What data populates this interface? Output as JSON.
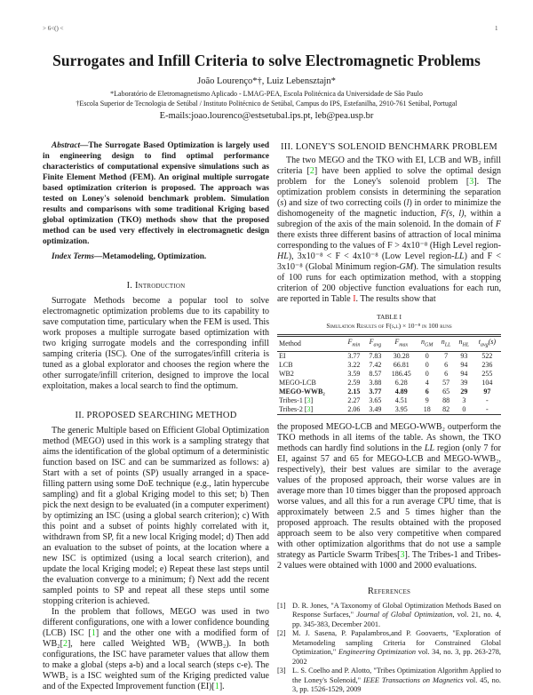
{
  "header": {
    "left": "> 6<() <",
    "page_number": "1"
  },
  "title": "Surrogates and Infill Criteria to solve Electromagnetic Problems",
  "authors": "João Lourenço*†, Luiz Lebensztajn*",
  "affiliations": [
    "*Laboratório de Eletromagnetismo Aplicado - LMAG-PEA, Escola Politécnica da Universidade de São Paulo",
    "†Escola Superior de Tecnologia de Setúbal / Instituto Politécnico de Setúbal, Campus do IPS, Estefanilha, 2910-761 Setúbal, Portugal"
  ],
  "emails": "E-mails:joao.lourenco@estsetubal.ips.pt, leb@pea.usp.br",
  "abstract": {
    "label": "Abstract",
    "text": "—The Surrogate Based Optimization is largely used in engineering design to find optimal performance characteristics of computational expensive simulations such as Finite Element Method (FEM). An original multiple surrogate based optimization criterion is proposed. The approach was tested on Loney's solenoid benchmark problem. Simulation results and comparisons with some traditional Kriging based global optimization (TKO) methods show that the proposed method can be used very effectively in electromagnetic design optimization.",
    "index_label": "Index Terms",
    "index_text": "—Metamodeling, Optimization."
  },
  "sections": {
    "intro": {
      "title": "I. Introduction",
      "paragraphs": [
        [
          {
            "t": "Surrogate Methods become a popular tool to solve electromagnetic optimization problems due to its capability to save computation time, particulary when the FEM is used. This work proposes a multiple surrogate based optimization with two kriging surrogate models and the corresponding infill samping criteria (ISC). One of the surrogates/infill criteria is tuned as a global explorator and chooses the region where the other surrogate/infill criterion, designed to improve the local exploitation, makes a local search to find the optimum."
          }
        ]
      ]
    },
    "method": {
      "title": "II. PROPOSED SEARCHING METHOD",
      "paragraphs": [
        [
          {
            "t": "The generic Multiple based on Efficient Global Optimization method (MEGO) used in this work is a sampling strategy that aims the identification of the global optimum of a deterministic function based on ISC and can be summarized as follows: a) Start with a set of points (SP) usually arranged in a space-filling pattern using some DoE technique (e.g., latin hypercube sampling) and fit a global Kriging model to this set; b) Then pick the next design to be evaluated (in a computer experiment) by optimizing an ISC (using a global search criterion); c) With this point and a subset of points highly correlated with it, withdrawn from SP, fit a new local Kriging model; d) Then add an evaluation to the subset of points, at the location where a new ISC is optimized (using a local search criterion), and update the local Kriging model; e) Repeat these last steps until the evaluation converge to a minimum; f) Next add the recent sampled points to SP and repeat all these steps until some stopping criterion is achieved."
          }
        ],
        [
          {
            "t": "In the problem that follows, MEGO was used in two different configurations, one with a lower confidence bounding (LCB) ISC ["
          },
          {
            "t": "1",
            "k": "cite"
          },
          {
            "t": "] and the other one with a modified form of WB₂["
          },
          {
            "t": "2",
            "k": "cite"
          },
          {
            "t": "], here called Weighted WB₂ (WWB₂). In both configurations, the ISC have parameter values that allow them to make a global (steps a-b) and a local search (steps c-e). The WWB₂ is a ISC weighted sum of the Kriging predicted value and of the Expected Improvement function (EI)["
          },
          {
            "t": "1",
            "k": "cite"
          },
          {
            "t": "]."
          }
        ]
      ]
    },
    "loney": {
      "title": "III. LONEY'S SOLENOID BENCHMARK PROBLEM",
      "paragraphs": [
        [
          {
            "t": "The two MEGO and the TKO with EI, LCB and WB₂ infill criteria ["
          },
          {
            "t": "2",
            "k": "cite"
          },
          {
            "t": "] have been applied to solve the optimal design problem for the Loney's solenoid problem ["
          },
          {
            "t": "3",
            "k": "cite"
          },
          {
            "t": "]. The optimization problem consists in determining the separation ("
          },
          {
            "t": "s",
            "k": "it"
          },
          {
            "t": ") and size of two correcting coils ("
          },
          {
            "t": "l",
            "k": "it"
          },
          {
            "t": ") in order to minimize the dishomogeneity of the magnetic induction, "
          },
          {
            "t": "F(s, l)",
            "k": "it"
          },
          {
            "t": ", within a subregion of the axis of the main solenoid. In the domain of "
          },
          {
            "t": "F",
            "k": "it"
          },
          {
            "t": " there exists three different basins of attraction of local minima corresponding to the values of F > 4x10⁻⁸ (High Level region-"
          },
          {
            "t": "HL",
            "k": "it"
          },
          {
            "t": "), 3x10⁻⁸ < F < 4x10⁻⁸ (Low Level region-"
          },
          {
            "t": "LL",
            "k": "it"
          },
          {
            "t": ") and F < 3x10⁻⁸ (Global Minimum region-"
          },
          {
            "t": "GM",
            "k": "it"
          },
          {
            "t": "). The simulation results of 100 runs for each optimization method, with a stopping criterion of 200 objective function evaluations for each run, are reported in Table "
          },
          {
            "t": "I",
            "k": "tref"
          },
          {
            "t": ". The results show that"
          }
        ]
      ],
      "paragraphs_after": [
        [
          {
            "t": "the proposed MEGO-LCB and MEGO-WWB₂ outperform the TKO methods in all items of the table. As shown, the TKO methods can hardly find solutions in the "
          },
          {
            "t": "LL",
            "k": "it"
          },
          {
            "t": " region (only 7 for EI, against 57 and 65 for MEGO-LCB and MEGO-WWB₂, respectively), their best values are similar to the average values of the proposed approach, their worse values are in average more than 10 times bigger than the proposed approach worse values, and all this for a run average CPU time, that is approximately between 2.5 and 5 times higher than the proposed approach. The results obtained with the proposed approach seem to be also very competitive when compared with other optimization algorithms that do not use a sample strategy as Particle Swarm Tribes["
          },
          {
            "t": "3",
            "k": "cite"
          },
          {
            "t": "]. The Tribes-1 and Tribes-2 values were obtained with 1000 and 2000 evaluations."
          }
        ]
      ]
    }
  },
  "table": {
    "label": "Table I",
    "caption": "Simulation Results of F(s,l) × 10⁻⁸ in 100 runs",
    "headers": [
      {
        "b": "Method",
        "s": ""
      },
      {
        "b": "F",
        "s": "min"
      },
      {
        "b": "F",
        "s": "avg"
      },
      {
        "b": "F",
        "s": "max"
      },
      {
        "b": "n",
        "s": "GM"
      },
      {
        "b": "n",
        "s": "LL"
      },
      {
        "b": "n",
        "s": "HL"
      },
      {
        "b": "t",
        "s": "avg",
        "suffix": "(s)"
      }
    ],
    "rows": [
      {
        "method": "EI",
        "cite": "",
        "vals": [
          "3.77",
          "7.83",
          "30.28",
          "0",
          "7",
          "93",
          "522"
        ]
      },
      {
        "method": "LCB",
        "cite": "",
        "vals": [
          "3.22",
          "7.42",
          "66.81",
          "0",
          "6",
          "94",
          "236"
        ]
      },
      {
        "method": "WB2",
        "cite": "",
        "vals": [
          "3.59",
          "8.57",
          "186.45",
          "0",
          "6",
          "94",
          "255"
        ]
      },
      {
        "method": "MEGO-LCB",
        "cite": "",
        "vals": [
          "2.59",
          "3.88",
          "6.28",
          "4",
          "57",
          "39",
          "104"
        ]
      },
      {
        "method": "MEGO-WWB₂",
        "cite": "",
        "bold": true,
        "vals": [
          "2.15",
          "3.77",
          "4.89",
          "6",
          "65",
          "29",
          "97"
        ],
        "bold_cols": [
          0,
          1,
          2,
          3,
          5,
          6
        ]
      },
      {
        "method": "Tribes-1 ",
        "cite": "3",
        "vals": [
          "2.27",
          "3.65",
          "4.51",
          "9",
          "88",
          "3",
          "-"
        ]
      },
      {
        "method": "Tribes-2 ",
        "cite": "3",
        "vals": [
          "2.06",
          "3.49",
          "3.95",
          "18",
          "82",
          "0",
          "-"
        ]
      }
    ]
  },
  "references": {
    "title": "References",
    "items": [
      {
        "num": "[1]",
        "pre": "D. R. Jones, \"A Taxonomy of Global Optimization Methods Based on Response Surfaces,\" ",
        "venue": "Journal of Global Optimization",
        "post": ", vol. 21, no. 4, pp. 345-383, December 2001."
      },
      {
        "num": "[2]",
        "pre": "M. J. Sasena, P. Papalambros,and P. Goovaerts, \"Exploration of Metamodeling sampling Criteria for Constrained Global Optimization,\" ",
        "venue": "Engineering Optimization",
        "post": " vol. 34, no. 3, pp. 263-278, 2002"
      },
      {
        "num": "[3]",
        "pre": "L. S. Coelho and P. Alotto, \"Tribes Optimization Algorithm Applied to the Loney's Solenoid,\" ",
        "venue": "IEEE Transactions on Magnetics",
        "post": " vol. 45, no. 3, pp. 1526-1529, 2009"
      }
    ]
  },
  "colors": {
    "citation": "#1bd41b",
    "table_ref": "#e02020",
    "text": "#1a1a1a"
  }
}
